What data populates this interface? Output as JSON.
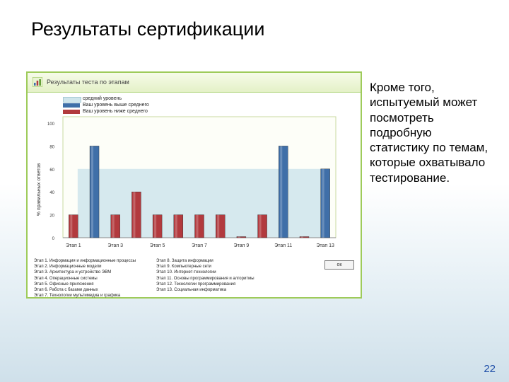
{
  "slide": {
    "title": "Результаты сертификации",
    "side_text": "Кроме того, испытуемый может посмотреть подробную статистику по темам, которые охватывало тестирование.",
    "page_number": "22"
  },
  "panel": {
    "title": "Результаты теста по этапам",
    "ok_label": "ок"
  },
  "colors": {
    "panel_border": "#9ecb5a",
    "average_band": "#cfe5ec",
    "above_average": "#3f6fa8",
    "below_average": "#b23a3e"
  },
  "chart_data": {
    "type": "bar",
    "ylabel": "% правильных ответов",
    "ylim": [
      0,
      100
    ],
    "yticks": [
      0,
      20,
      40,
      60,
      80,
      100
    ],
    "grid": false,
    "legend_position": "top-left",
    "legend": [
      {
        "label": "средний уровень",
        "color": "#cfe5ec"
      },
      {
        "label": "Ваш уровень выше среднего",
        "color": "#3f6fa8"
      },
      {
        "label": "Ваш уровень ниже среднего",
        "color": "#b23a3e"
      }
    ],
    "average_level": 60,
    "categories": [
      "Этап 1",
      "Этап 2",
      "Этап 3",
      "Этап 4",
      "Этап 5",
      "Этап 6",
      "Этап 7",
      "Этап 8",
      "Этап 9",
      "Этап 10",
      "Этап 11",
      "Этап 12",
      "Этап 13"
    ],
    "tick_labels": [
      "Этап 1",
      "Этап 3",
      "Этап 5",
      "Этап 7",
      "Этап 9",
      "Этап 11",
      "Этап 13"
    ],
    "values": [
      20,
      80,
      20,
      40,
      20,
      20,
      20,
      20,
      0,
      20,
      80,
      0,
      60
    ],
    "bar_series": [
      "below",
      "above",
      "below",
      "below",
      "below",
      "below",
      "below",
      "below",
      "below",
      "below",
      "above",
      "below",
      "above"
    ]
  },
  "stages_left": [
    "Этап 1. Информация и информационные процессы",
    "Этап 2. Информационные модели",
    "Этап 3. Архитектура и устройство ЭВМ",
    "Этап 4. Операционные системы",
    "Этап 5. Офисные приложения",
    "Этап 6. Работа с базами данных",
    "Этап 7. Технологии мультимедиа и графика"
  ],
  "stages_right": [
    "Этап 8. Защита информации",
    "Этап 9. Компьютерные сети",
    "Этап 10. Интернет-технологии",
    "Этап 11. Основы программирования и алгоритмы",
    "Этап 12. Технологии программирования",
    "Этап 13. Социальная информатика"
  ]
}
